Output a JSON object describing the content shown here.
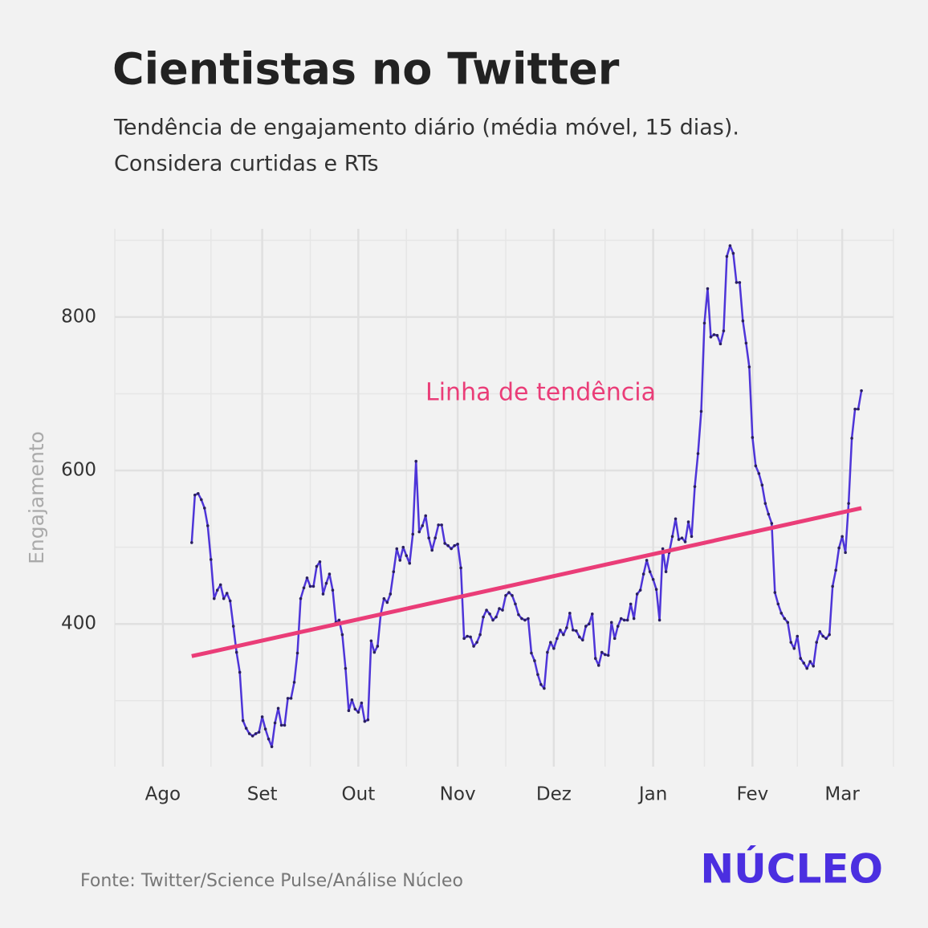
{
  "chart_data": {
    "type": "line",
    "title": "Cientistas no Twitter",
    "subtitle": [
      "Tendência de engajamento diário (média móvel, 15 dias).",
      "Considera curtidas e RTs"
    ],
    "y_label": "Engajamento",
    "source": "Fonte: Twitter/Science Pulse/Análise Núcleo",
    "logo": "NÚCLEO",
    "series": [
      {
        "name": "Engajamento",
        "color": "#4e35d8",
        "x": [
          9,
          10,
          11,
          12,
          13,
          14,
          15,
          16,
          17,
          18,
          19,
          20,
          21,
          22,
          23,
          24,
          25,
          26,
          27,
          28,
          29,
          30,
          31,
          32,
          33,
          34,
          35,
          36,
          37,
          38,
          39,
          40,
          41,
          42,
          43,
          44,
          45,
          46,
          47,
          48,
          49,
          50,
          51,
          52,
          53,
          54,
          55,
          56,
          57,
          58,
          59,
          60,
          61,
          62,
          63,
          64,
          65,
          66,
          67,
          68,
          69,
          70,
          71,
          72,
          73,
          74,
          75,
          76,
          77,
          78,
          79,
          80,
          81,
          82,
          83,
          84,
          85,
          86,
          87,
          88,
          89,
          90,
          91,
          92,
          93,
          94,
          95,
          96,
          97,
          98,
          99,
          100,
          101,
          102,
          103,
          104,
          105,
          106,
          107,
          108,
          109,
          110,
          111,
          112,
          113,
          114,
          115,
          116,
          117,
          118,
          119,
          120,
          121,
          122,
          123,
          124,
          125,
          126,
          127,
          128,
          129,
          130,
          131,
          132,
          133,
          134,
          135,
          136,
          137,
          138,
          139,
          140,
          141,
          142,
          143,
          144,
          145,
          146,
          147,
          148,
          149,
          150,
          151,
          152,
          153,
          154,
          155,
          156,
          157,
          158,
          159,
          160,
          161,
          162,
          163,
          164,
          165,
          166,
          167,
          168,
          169,
          170,
          171,
          172,
          173,
          174,
          175,
          176,
          177,
          178,
          179,
          180,
          181,
          182,
          183,
          184,
          185,
          186,
          187,
          188,
          189,
          190,
          191,
          192,
          193,
          194,
          195,
          196,
          197,
          198,
          199,
          200,
          201,
          202,
          203,
          204,
          205,
          206,
          207,
          208,
          209,
          210,
          211,
          212,
          213,
          214,
          215,
          216,
          217,
          218
        ],
        "values": [
          506,
          568,
          570,
          562,
          551,
          528,
          484,
          433,
          444,
          451,
          433,
          440,
          430,
          397,
          363,
          337,
          274,
          264,
          257,
          254,
          257,
          259,
          279,
          263,
          250,
          240,
          271,
          290,
          268,
          268,
          303,
          303,
          324,
          362,
          433,
          447,
          460,
          449,
          449,
          475,
          481,
          439,
          453,
          465,
          444,
          402,
          405,
          386,
          342,
          287,
          301,
          289,
          285,
          297,
          273,
          275,
          378,
          363,
          371,
          413,
          433,
          428,
          439,
          468,
          498,
          483,
          500,
          489,
          479,
          517,
          612,
          520,
          528,
          541,
          512,
          496,
          512,
          529,
          529,
          505,
          502,
          498,
          502,
          504,
          473,
          381,
          384,
          383,
          371,
          376,
          386,
          409,
          418,
          413,
          405,
          409,
          420,
          418,
          437,
          441,
          437,
          426,
          412,
          407,
          405,
          407,
          362,
          352,
          334,
          321,
          316,
          363,
          376,
          368,
          381,
          392,
          386,
          395,
          414,
          392,
          391,
          383,
          379,
          397,
          400,
          413,
          355,
          346,
          363,
          360,
          359,
          402,
          381,
          397,
          407,
          405,
          405,
          426,
          407,
          439,
          444,
          465,
          483,
          468,
          458,
          445,
          405,
          498,
          468,
          493,
          514,
          537,
          510,
          512,
          507,
          533,
          514,
          579,
          622,
          677,
          792,
          837,
          774,
          777,
          776,
          765,
          782,
          879,
          893,
          883,
          845,
          845,
          795,
          766,
          735,
          643,
          606,
          596,
          581,
          557,
          543,
          531,
          441,
          426,
          414,
          407,
          402,
          376,
          368,
          384,
          355,
          349,
          342,
          351,
          345,
          376,
          390,
          384,
          381,
          386,
          449,
          470,
          499,
          514,
          493,
          557,
          642,
          680,
          680,
          704
        ]
      },
      {
        "name": "Linha de tendência",
        "color": "#ea3d78",
        "x": [
          9,
          218
        ],
        "values": [
          358,
          551
        ]
      }
    ],
    "xlim": [
      -15,
      228
    ],
    "xticks": [
      {
        "value": 0,
        "label": "Ago"
      },
      {
        "value": 31,
        "label": "Set"
      },
      {
        "value": 61,
        "label": "Out"
      },
      {
        "value": 92,
        "label": "Nov"
      },
      {
        "value": 122,
        "label": "Dez"
      },
      {
        "value": 153,
        "label": "Jan"
      },
      {
        "value": 184,
        "label": "Fev"
      },
      {
        "value": 212,
        "label": "Mar"
      }
    ],
    "xminor": [
      -15,
      15,
      46,
      76,
      107,
      138,
      169,
      198,
      228
    ],
    "ylim": [
      214,
      915
    ],
    "yticks": [
      400,
      600,
      800
    ],
    "yminor": [
      300,
      500,
      700,
      900
    ],
    "grid": true
  }
}
